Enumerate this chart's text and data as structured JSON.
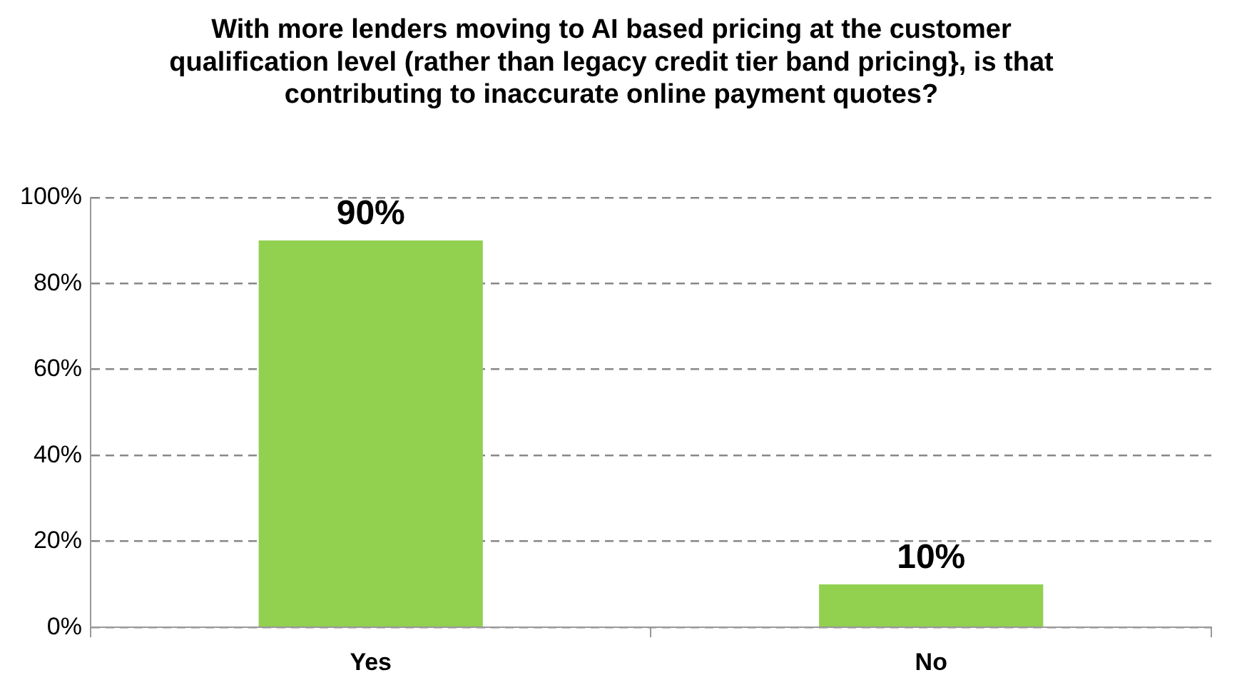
{
  "chart_data": {
    "type": "bar",
    "title": "With more lenders moving to AI based pricing at the customer qualification level (rather than legacy credit tier band pricing}, is that contributing to inaccurate online payment quotes?",
    "categories": [
      "Yes",
      "No"
    ],
    "values": [
      90,
      10
    ],
    "value_labels": [
      "90%",
      "10%"
    ],
    "color": "#92d050",
    "ylim": [
      0,
      100
    ],
    "yticks": [
      {
        "value": 0,
        "label": "0%"
      },
      {
        "value": 20,
        "label": "20%"
      },
      {
        "value": 40,
        "label": "40%"
      },
      {
        "value": 60,
        "label": "60%"
      },
      {
        "value": 80,
        "label": "80%"
      },
      {
        "value": 100,
        "label": "100%"
      }
    ],
    "grid": "y",
    "legend": false
  }
}
